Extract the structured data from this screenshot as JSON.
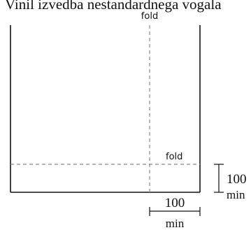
{
  "caption": "Vinil izvedba nestandardnega vogala",
  "labels": {
    "fold_vertical": "fold",
    "fold_horizontal": "fold",
    "dim_right_value": "100",
    "dim_right_unit": "min",
    "dim_bottom_value": "100",
    "dim_bottom_unit": "min"
  }
}
